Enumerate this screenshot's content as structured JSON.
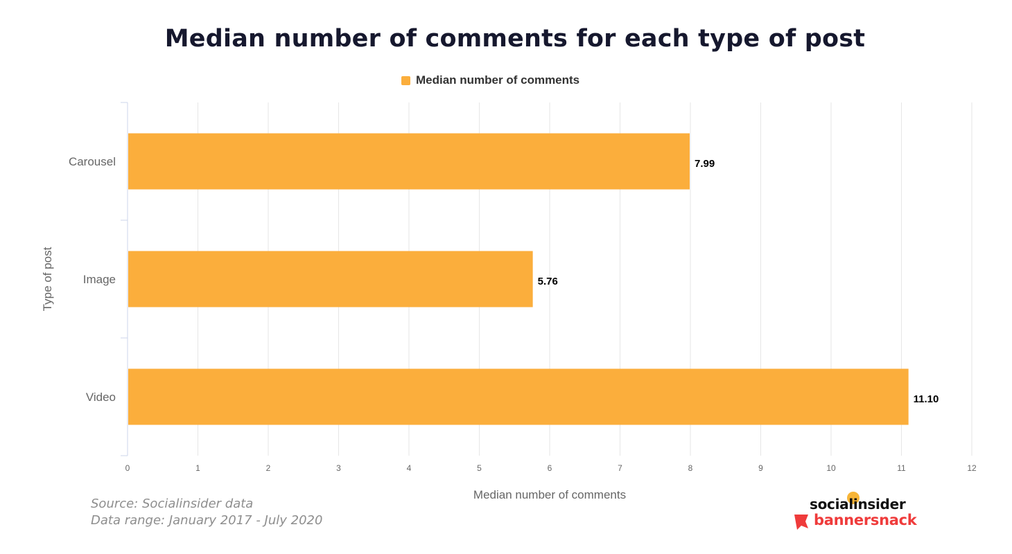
{
  "title": "Median number of comments for each type of post",
  "legend": {
    "label": "Median number of comments",
    "color": "#fbae3c"
  },
  "footer": {
    "source": "Source: Socialinsider data",
    "range": "Data range: January 2017 - July 2020"
  },
  "logos": {
    "top": "socialinsider",
    "bottom": "bannersnack"
  },
  "chart_data": {
    "type": "bar",
    "orientation": "horizontal",
    "title": "Median number of comments for each type of post",
    "xlabel": "Median number of comments",
    "ylabel": "Type of post",
    "categories": [
      "Carousel",
      "Image",
      "Video"
    ],
    "series": [
      {
        "name": "Median number of comments",
        "values": [
          7.99,
          5.76,
          11.1
        ],
        "labels": [
          "7.99",
          "5.76",
          "11.10"
        ],
        "color": "#fbae3c"
      }
    ],
    "xlim": [
      0,
      12
    ],
    "xticks": [
      "0",
      "1",
      "2",
      "3",
      "4",
      "5",
      "6",
      "7",
      "8",
      "9",
      "10",
      "11",
      "12"
    ],
    "grid": true,
    "legend_position": "top-center"
  }
}
